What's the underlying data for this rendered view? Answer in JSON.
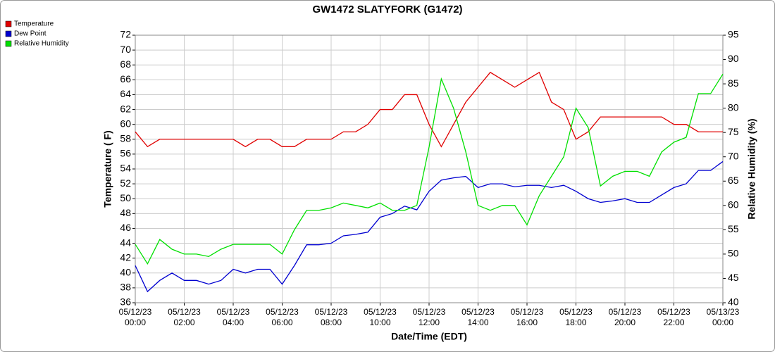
{
  "chart_data": {
    "type": "line",
    "title": "GW1472 SLATYFORK (G1472)",
    "x_label": "Date/Time (EDT)",
    "y_label": "Temperature ( F)",
    "y2_label": "Relative Humidity (%)",
    "x": [
      0,
      0.5,
      1,
      1.5,
      2,
      2.5,
      3,
      3.5,
      4,
      4.5,
      5,
      5.5,
      6,
      6.5,
      7,
      7.5,
      8,
      8.5,
      9,
      9.5,
      10,
      10.5,
      11,
      11.5,
      12,
      12.5,
      13,
      13.5,
      14,
      14.5,
      15,
      15.5,
      16,
      16.5,
      17,
      17.5,
      18,
      18.5,
      19,
      19.5,
      20,
      20.5,
      21,
      21.5,
      22,
      22.5,
      23,
      23.5,
      24
    ],
    "xlim": [
      0,
      24
    ],
    "xticks": [
      {
        "value": 0,
        "label": "05/12/23 00:00"
      },
      {
        "value": 2,
        "label": "05/12/23 02:00"
      },
      {
        "value": 4,
        "label": "05/12/23 04:00"
      },
      {
        "value": 6,
        "label": "05/12/23 06:00"
      },
      {
        "value": 8,
        "label": "05/12/23 08:00"
      },
      {
        "value": 10,
        "label": "05/12/23 10:00"
      },
      {
        "value": 12,
        "label": "05/12/23 12:00"
      },
      {
        "value": 14,
        "label": "05/12/23 14:00"
      },
      {
        "value": 16,
        "label": "05/12/23 16:00"
      },
      {
        "value": 18,
        "label": "05/12/23 18:00"
      },
      {
        "value": 20,
        "label": "05/12/23 20:00"
      },
      {
        "value": 22,
        "label": "05/12/23 22:00"
      },
      {
        "value": 24,
        "label": "05/13/23 00:00"
      }
    ],
    "ylim": [
      36,
      72
    ],
    "yticks": [
      36,
      38,
      40,
      42,
      44,
      46,
      48,
      50,
      52,
      54,
      56,
      58,
      60,
      62,
      64,
      66,
      68,
      70,
      72
    ],
    "y2lim": [
      40,
      95
    ],
    "y2ticks": [
      40,
      45,
      50,
      55,
      60,
      65,
      70,
      75,
      80,
      85,
      90,
      95
    ],
    "grid": true,
    "legend": "top-left",
    "series": [
      {
        "name": "Temperature",
        "color": "#e00000",
        "values": [
          59,
          57,
          58,
          58,
          58,
          58,
          58,
          58,
          58,
          57,
          58,
          58,
          57,
          57,
          58,
          58,
          58,
          59,
          59,
          60,
          62,
          62,
          64,
          64,
          60,
          57,
          60,
          63,
          65,
          67,
          66,
          65,
          66,
          67,
          63,
          62,
          58,
          59,
          61,
          61,
          61,
          61,
          61,
          61,
          60,
          60,
          59,
          59,
          59
        ]
      },
      {
        "name": "Dew Point",
        "color": "#0000d0",
        "values": [
          41,
          37.5,
          39,
          40,
          39,
          39,
          38.5,
          39,
          40.5,
          40,
          40.5,
          40.5,
          38.5,
          41,
          43.8,
          43.8,
          44,
          45,
          45.2,
          45.5,
          47.5,
          48,
          49,
          48.5,
          51,
          52.5,
          52.8,
          53,
          51.5,
          52,
          52,
          51.6,
          51.8,
          51.8,
          51.5,
          51.8,
          51,
          50,
          49.5,
          49.7,
          50,
          49.5,
          49.5,
          50.5,
          51.5,
          52,
          53.8,
          53.8,
          55
        ]
      },
      {
        "name": "Relative Humidity",
        "color": "#00e000",
        "axis": "y2",
        "values": [
          52,
          48,
          53,
          51,
          50,
          50,
          49.5,
          51,
          52,
          52,
          52,
          52,
          50,
          55,
          59,
          59,
          59.5,
          60.5,
          60,
          59.5,
          60.5,
          59,
          59,
          60,
          72,
          86,
          80,
          71,
          60,
          59,
          60,
          60,
          56,
          62,
          66,
          70,
          80,
          76,
          64,
          66,
          67,
          67,
          66,
          71,
          73,
          74,
          83,
          83,
          87
        ]
      }
    ]
  }
}
